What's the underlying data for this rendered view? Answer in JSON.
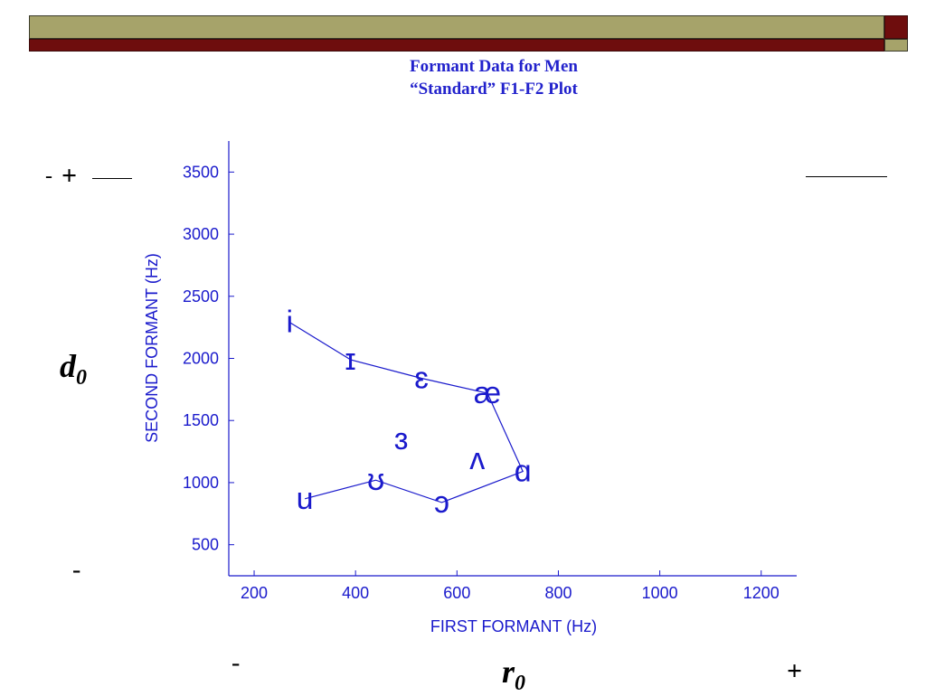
{
  "slide": {
    "title_line1": "Formant Data for Men",
    "title_line2": "“Standard” F1-F2 Plot"
  },
  "annotations": {
    "top_left_minus": "-",
    "top_left_plus": "+",
    "left_symbol": "d",
    "left_symbol_sub": "0",
    "left_lower_minus": "-",
    "bottom_minus": "-",
    "bottom_symbol": "r",
    "bottom_symbol_sub": "0",
    "bottom_plus": "+"
  },
  "colors": {
    "plot": "#1a1acc",
    "band_olive": "#a6a36a",
    "band_maroon": "#6e0d0d"
  },
  "chart_data": {
    "type": "scatter",
    "title": "",
    "xlabel": "FIRST FORMANT (Hz)",
    "ylabel": "SECOND FORMANT (Hz)",
    "xlim": [
      150,
      1270
    ],
    "ylim": [
      250,
      3750
    ],
    "xticks": [
      200,
      400,
      600,
      800,
      1000,
      1200
    ],
    "yticks": [
      500,
      1000,
      1500,
      2000,
      2500,
      3000,
      3500
    ],
    "grid": false,
    "points": [
      {
        "label": "i",
        "x": 270,
        "y": 2290
      },
      {
        "label": "ɪ",
        "x": 390,
        "y": 1990
      },
      {
        "label": "ɛ",
        "x": 530,
        "y": 1840
      },
      {
        "label": "æ",
        "x": 660,
        "y": 1720
      },
      {
        "label": "ɑ",
        "x": 730,
        "y": 1090
      },
      {
        "label": "ɔ",
        "x": 570,
        "y": 840
      },
      {
        "label": "ʊ",
        "x": 440,
        "y": 1020
      },
      {
        "label": "u",
        "x": 300,
        "y": 870
      },
      {
        "label": "ʌ",
        "x": 640,
        "y": 1190
      },
      {
        "label": "ɜ",
        "x": 490,
        "y": 1350
      }
    ],
    "polyline_order": [
      "i",
      "ɪ",
      "ɛ",
      "æ",
      "ɑ",
      "ɔ",
      "ʊ",
      "u"
    ]
  }
}
